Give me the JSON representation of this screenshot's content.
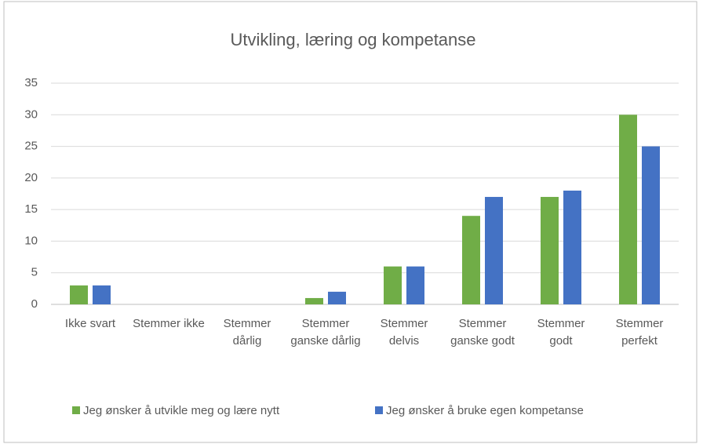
{
  "chart_data": {
    "type": "bar",
    "title": "Utvikling, læring og kompetanse",
    "categories": [
      "Ikke svart",
      "Stemmer ikke",
      "Stemmer dårlig",
      "Stemmer ganske dårlig",
      "Stemmer delvis",
      "Stemmer ganske godt",
      "Stemmer godt",
      "Stemmer perfekt"
    ],
    "series": [
      {
        "name": "Jeg ønsker å utvikle meg og lære nytt",
        "color": "#70ad47",
        "values": [
          3,
          0,
          0,
          1,
          6,
          14,
          17,
          30
        ]
      },
      {
        "name": "Jeg ønsker å bruke egen kompetanse",
        "color": "#4472c4",
        "values": [
          3,
          0,
          0,
          2,
          6,
          17,
          18,
          25
        ]
      }
    ],
    "ylim": [
      0,
      35
    ],
    "yticks": [
      0,
      5,
      10,
      15,
      20,
      25,
      30,
      35
    ],
    "grid": true,
    "legend": "bottom"
  }
}
